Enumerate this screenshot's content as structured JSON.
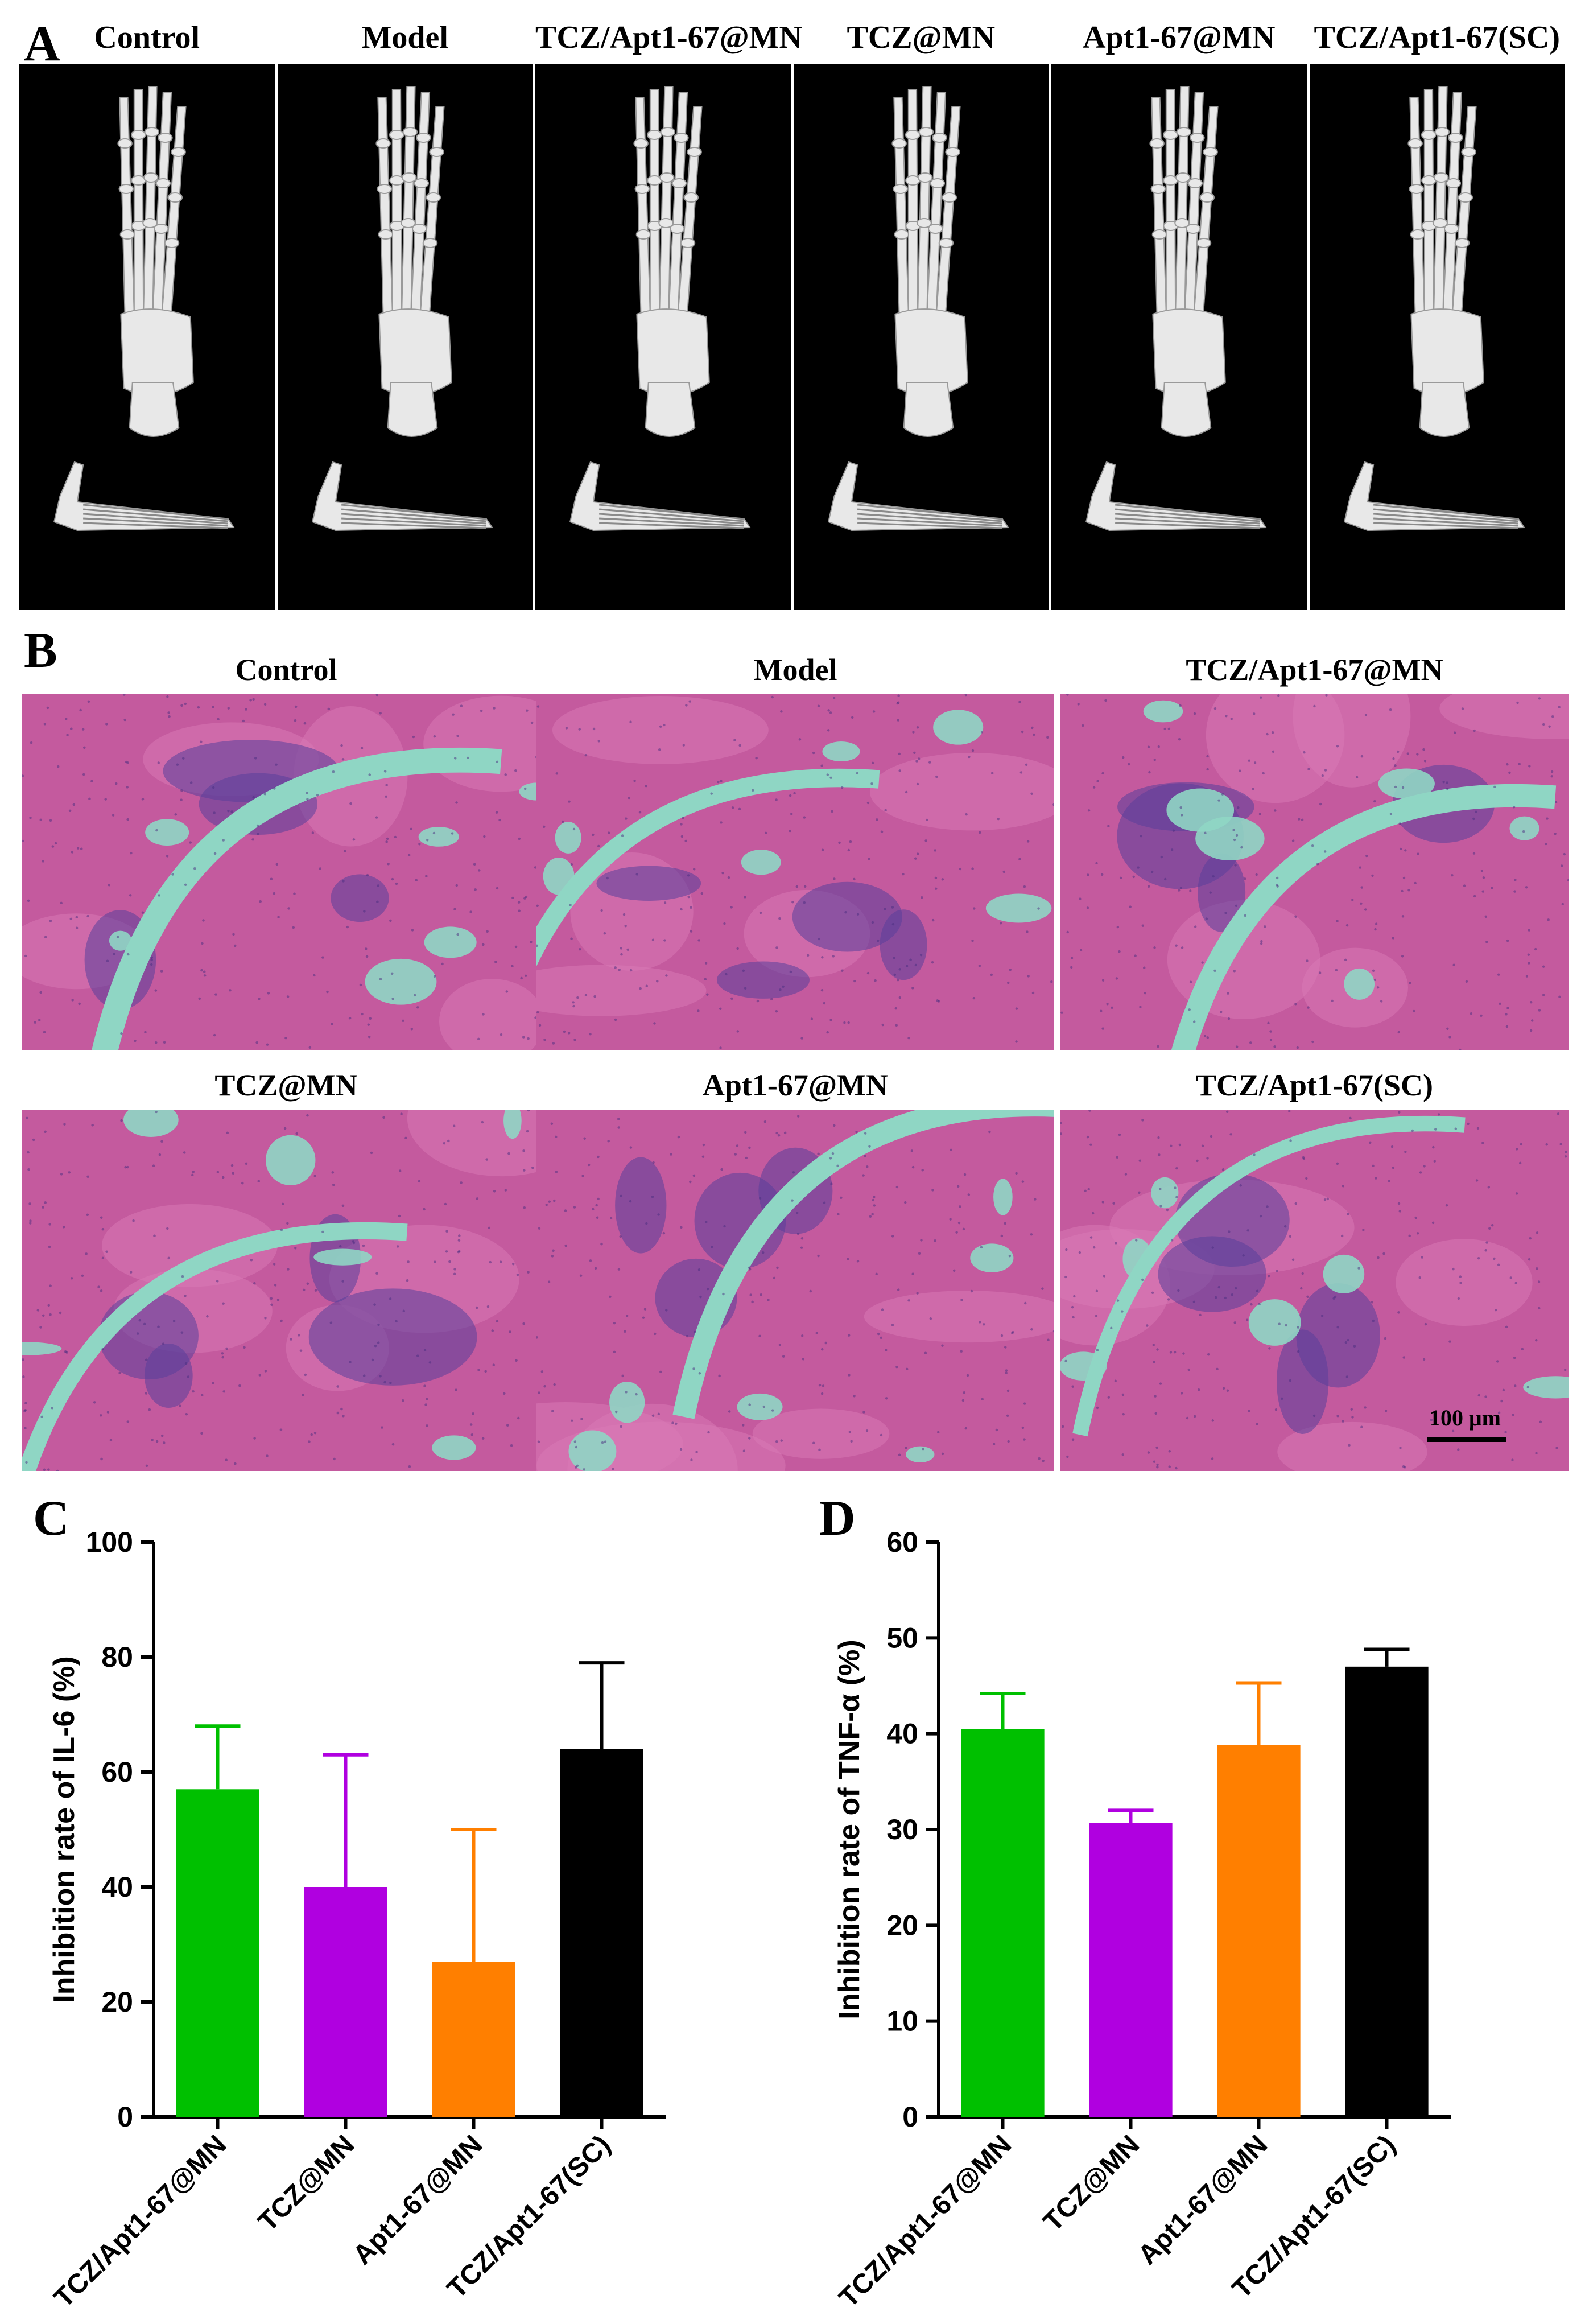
{
  "figure": {
    "panel_labels": {
      "A": "A",
      "B": "B",
      "C": "C",
      "D": "D"
    },
    "ct_groups": [
      "Control",
      "Model",
      "TCZ/Apt1-67@MN",
      "TCZ@MN",
      "Apt1-67@MN",
      "TCZ/Apt1-67(SC)"
    ],
    "he_groups": [
      "Control",
      "Model",
      "TCZ/Apt1-67@MN",
      "TCZ@MN",
      "Apt1-67@MN",
      "TCZ/Apt1-67(SC)"
    ],
    "scale_bar": "100 μm",
    "colors": {
      "he_pink": "#c45a9e",
      "he_cyan": "#8fd6c4",
      "he_purple": "#5a3f9a",
      "ct_bone": "#e8e8e8"
    }
  },
  "chart_data": [
    {
      "panel": "C",
      "type": "bar",
      "categories": [
        "TCZ/Apt1-67@MN",
        "TCZ@MN",
        "Apt1-67@MN",
        "TCZ/Apt1-67(SC)"
      ],
      "values": [
        57,
        40,
        27,
        64
      ],
      "errors": [
        11,
        23,
        23,
        15
      ],
      "colors": [
        "#00c000",
        "#b000e0",
        "#ff7f00",
        "#000000"
      ],
      "ylabel": "Inhibition rate of IL-6 (%)",
      "ylim": [
        0,
        100
      ],
      "yticks": [
        0,
        20,
        40,
        60,
        80,
        100
      ]
    },
    {
      "panel": "D",
      "type": "bar",
      "categories": [
        "TCZ/Apt1-67@MN",
        "TCZ@MN",
        "Apt1-67@MN",
        "TCZ/Apt1-67(SC)"
      ],
      "values": [
        40.5,
        30.7,
        38.8,
        47
      ],
      "errors": [
        3.7,
        1.3,
        6.5,
        1.8
      ],
      "colors": [
        "#00c000",
        "#b000e0",
        "#ff7f00",
        "#000000"
      ],
      "ylabel": "Inhibition rate of TNF-α (%)",
      "ylim": [
        0,
        60
      ],
      "yticks": [
        0,
        10,
        20,
        30,
        40,
        50,
        60
      ]
    }
  ]
}
